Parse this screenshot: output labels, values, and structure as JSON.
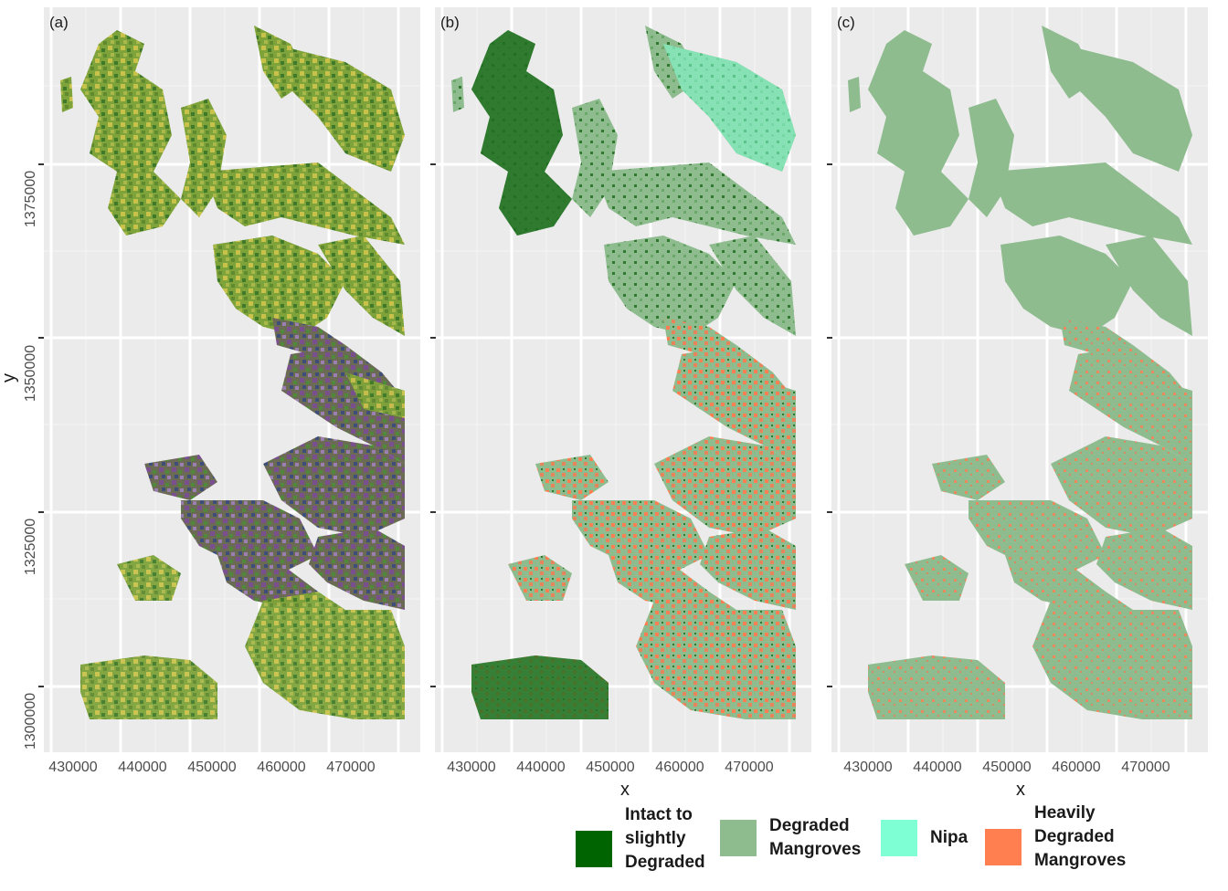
{
  "figure": {
    "panels": [
      {
        "id": "a",
        "label": "(a)",
        "show_y_axis": true,
        "x_title": "",
        "theme": "rgb"
      },
      {
        "id": "b",
        "label": "(b)",
        "show_y_axis": false,
        "x_title": "x",
        "theme": "class-b"
      },
      {
        "id": "c",
        "label": "(c)",
        "show_y_axis": false,
        "x_title": "x",
        "theme": "class-c"
      }
    ],
    "x_ticks": [
      "430000",
      "440000",
      "450000",
      "460000",
      "470000"
    ],
    "y_ticks": [
      "1300000",
      "1325000",
      "1350000",
      "1375000"
    ],
    "y_title": "y",
    "panel_background": "#ebebeb",
    "grid_color": "#ffffff"
  },
  "chart_data": {
    "type": "heatmap",
    "x_range": [
      425000,
      477000
    ],
    "y_range": [
      1291000,
      1397000
    ],
    "xlabel": "x",
    "ylabel": "y"
  },
  "legend": {
    "items": [
      {
        "label": "Intact to\nslightly\nDegraded",
        "color": "#006400"
      },
      {
        "label": "Degraded\nMangroves",
        "color": "#8fbc8f"
      },
      {
        "label": "Nipa",
        "color": "#7fffd4"
      },
      {
        "label": "Heavily\nDegraded\nMangroves",
        "color": "#ff7f50"
      }
    ]
  }
}
